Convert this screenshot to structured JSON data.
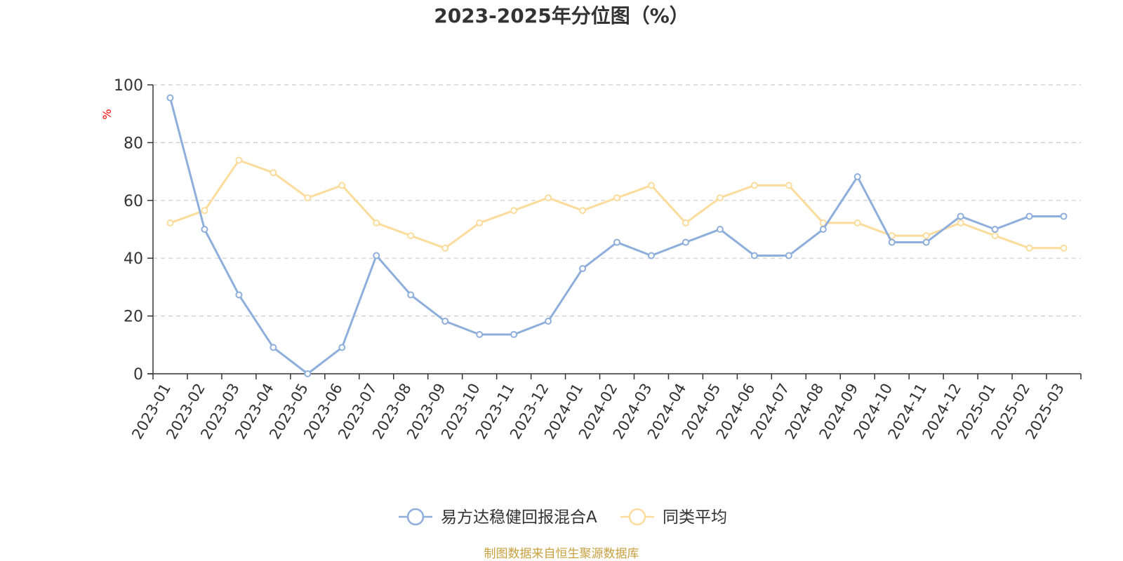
{
  "chart_data": {
    "type": "line",
    "title": "2023-2025年分位图（%）",
    "ylabel": "%",
    "ylim": [
      0,
      100
    ],
    "yticks": [
      "0",
      "20",
      "40",
      "60",
      "80",
      "100"
    ],
    "grid": true,
    "legend_position": "bottom-center",
    "categories": [
      "2023-01",
      "2023-02",
      "2023-03",
      "2023-04",
      "2023-05",
      "2023-06",
      "2023-07",
      "2023-08",
      "2023-09",
      "2023-10",
      "2023-11",
      "2023-12",
      "2024-01",
      "2024-02",
      "2024-03",
      "2024-04",
      "2024-05",
      "2024-06",
      "2024-07",
      "2024-08",
      "2024-09",
      "2024-10",
      "2024-11",
      "2024-12",
      "2025-01",
      "2025-02",
      "2025-03"
    ],
    "series": [
      {
        "name": "易方达稳健回报混合A",
        "color": "#8eaedb",
        "values": [
          95.5,
          50,
          27.3,
          9.1,
          0,
          9.1,
          40.9,
          27.3,
          18.2,
          13.6,
          13.6,
          18.2,
          36.4,
          45.5,
          40.9,
          45.5,
          50,
          40.9,
          40.9,
          50,
          68.2,
          45.5,
          45.5,
          54.5,
          50,
          54.5,
          54.5
        ]
      },
      {
        "name": "同类平均",
        "color": "#fcdc9c",
        "values": [
          52.2,
          56.5,
          73.9,
          69.6,
          60.9,
          65.2,
          52.2,
          47.8,
          43.5,
          52.2,
          56.5,
          60.9,
          56.5,
          60.9,
          65.2,
          52.2,
          60.9,
          65.2,
          65.2,
          52.2,
          52.2,
          47.8,
          47.8,
          52.2,
          47.8,
          43.5,
          43.5
        ]
      }
    ]
  },
  "source": {
    "text": "制图数据来自恒生聚源数据库",
    "color": "#c8a040"
  },
  "colors": {
    "axis": "#333333",
    "grid": "#cccccc",
    "ylabel": "#ff0000"
  }
}
